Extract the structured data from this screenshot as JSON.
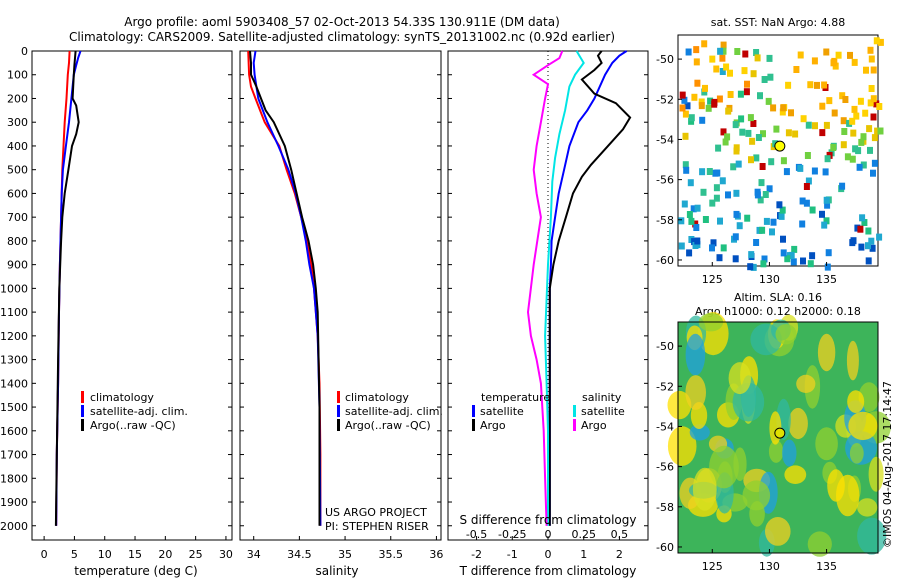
{
  "header": {
    "line1": "Argo profile: aoml 5903408_57 02-Oct-2013 54.33S 130.911E (DM data)",
    "line2": "Climatology: CARS2009. Satellite-adjusted climatology: synTS_20131002.nc (0.92d earlier)"
  },
  "credits": {
    "project": "US ARGO PROJECT",
    "pi": "PI: STEPHEN RISER",
    "imos": "©IMOS 04-Aug-2017 17:14:47"
  },
  "legend_profiles": [
    "climatology",
    "satellite-adj. clim.",
    "Argo(..raw -QC)"
  ],
  "legend_diff": {
    "temperature_head": "temperature",
    "salinity_head": "salinity",
    "t_items": [
      "satellite",
      "Argo"
    ],
    "s_items": [
      "satellite",
      "Argo"
    ]
  },
  "colors": {
    "climatology": "#ff0000",
    "satellite": "#0000ff",
    "argo": "#000000",
    "s_satellite": "#00e5e5",
    "s_argo": "#ff00ff"
  },
  "map_sst": {
    "title": "sat. SST: NaN Argo: 4.88",
    "xticks": [
      "125",
      "130",
      "135"
    ],
    "yticks": [
      "-50",
      "-52",
      "-54",
      "-56",
      "-58",
      "-60"
    ]
  },
  "map_sla": {
    "title1": "Altim. SLA: 0.16",
    "title2": "Argo h1000: 0.12 h2000: 0.18",
    "xticks": [
      "125",
      "130",
      "135"
    ],
    "yticks": [
      "-50",
      "-52",
      "-54",
      "-56",
      "-58",
      "-60"
    ]
  },
  "chart_data": [
    {
      "type": "line",
      "xlabel": "temperature (deg C)",
      "ylabel": "",
      "xlim": [
        -2,
        31
      ],
      "ylim": [
        2060,
        0
      ],
      "xticks": [
        "0",
        "5",
        "10",
        "15",
        "20",
        "25",
        "30"
      ],
      "yticks": [
        "0",
        "100",
        "200",
        "300",
        "400",
        "500",
        "600",
        "700",
        "800",
        "900",
        "1000",
        "1100",
        "1200",
        "1300",
        "1400",
        "1500",
        "1600",
        "1700",
        "1800",
        "1900",
        "2000"
      ],
      "series": [
        {
          "name": "climatology",
          "x": [
            4.2,
            4.1,
            3.9,
            3.7,
            3.4,
            3.2,
            3.0,
            2.9,
            2.8,
            2.6,
            2.45,
            2.3,
            2.1,
            2.0
          ],
          "y": [
            0,
            50,
            100,
            200,
            300,
            400,
            500,
            600,
            700,
            900,
            1100,
            1400,
            1700,
            2000
          ]
        },
        {
          "name": "satellite-adj. clim.",
          "x": [
            6.0,
            5.6,
            5.3,
            4.9,
            4.5,
            4.1,
            3.6,
            3.1,
            2.9,
            2.8,
            2.6,
            2.45,
            2.3,
            2.1,
            2.0
          ],
          "y": [
            0,
            30,
            60,
            100,
            200,
            300,
            400,
            500,
            600,
            700,
            900,
            1100,
            1400,
            1700,
            2000
          ]
        },
        {
          "name": "Argo(..raw -QC)",
          "x": [
            5.2,
            5.1,
            5.0,
            4.9,
            4.7,
            5.3,
            5.7,
            5.3,
            4.6,
            4.0,
            3.4,
            3.0,
            2.8,
            2.5,
            2.3,
            2.1,
            1.95
          ],
          "y": [
            0,
            30,
            60,
            100,
            200,
            230,
            300,
            350,
            400,
            500,
            600,
            700,
            800,
            1000,
            1300,
            1700,
            2000
          ]
        }
      ]
    },
    {
      "type": "line",
      "xlabel": "salinity",
      "ylabel": "",
      "xlim": [
        33.85,
        36.05
      ],
      "ylim": [
        2060,
        0
      ],
      "xticks": [
        "34",
        "34.5",
        "35",
        "35.5",
        "36"
      ],
      "series": [
        {
          "name": "climatology",
          "x": [
            33.94,
            33.95,
            33.97,
            34.02,
            34.12,
            34.28,
            34.36,
            34.45,
            34.52,
            34.58,
            34.63,
            34.66,
            34.7,
            34.72,
            34.73,
            34.73
          ],
          "y": [
            0,
            100,
            150,
            200,
            300,
            400,
            500,
            600,
            700,
            800,
            900,
            1000,
            1200,
            1400,
            1700,
            2000
          ]
        },
        {
          "name": "satellite-adj. clim.",
          "x": [
            34.02,
            34.0,
            34.01,
            34.03,
            34.05,
            34.15,
            34.27,
            34.38,
            34.46,
            34.52,
            34.57,
            34.61,
            34.66,
            34.7,
            34.72,
            34.73
          ],
          "y": [
            0,
            50,
            100,
            150,
            200,
            300,
            400,
            500,
            600,
            700,
            800,
            900,
            1000,
            1200,
            1500,
            2000
          ]
        },
        {
          "name": "Argo(..raw -QC)",
          "x": [
            33.96,
            33.97,
            33.97,
            34.03,
            34.08,
            34.13,
            34.22,
            34.34,
            34.41,
            34.47,
            34.53,
            34.6,
            34.65,
            34.68,
            34.7,
            34.71,
            34.72,
            34.72,
            34.72
          ],
          "y": [
            0,
            50,
            100,
            150,
            200,
            250,
            300,
            400,
            500,
            600,
            700,
            800,
            900,
            1000,
            1100,
            1300,
            1500,
            1800,
            2000
          ]
        }
      ]
    },
    {
      "type": "line",
      "xlabel": "T difference from climatology",
      "xlabel2": "S difference from climatology",
      "ylabel": "",
      "xlim": [
        -2.8,
        2.8
      ],
      "s_xlim": [
        -0.7,
        0.7
      ],
      "ylim": [
        2060,
        0
      ],
      "xticks": [
        "-2",
        "-1",
        "0",
        "1",
        "2"
      ],
      "s_xticks": [
        "-0.5",
        "-0.25",
        "0",
        "0.25",
        "0.5"
      ],
      "series": [
        {
          "name": "T satellite",
          "axis": "T",
          "x": [
            2.2,
            2.0,
            1.8,
            1.6,
            1.3,
            1.1,
            0.85,
            0.6,
            0.45,
            0.3,
            0.2,
            0.1,
            0.08,
            0.05,
            0.05,
            0.05
          ],
          "y": [
            0,
            20,
            50,
            100,
            200,
            250,
            300,
            400,
            500,
            600,
            700,
            800,
            900,
            1000,
            1500,
            2000
          ]
        },
        {
          "name": "T Argo",
          "axis": "T",
          "x": [
            1.5,
            1.4,
            1.5,
            1.3,
            0.95,
            1.3,
            1.9,
            2.3,
            2.1,
            1.8,
            1.5,
            1.2,
            0.95,
            0.7,
            0.5,
            0.3,
            0.15,
            0.05,
            0.05,
            0.05
          ],
          "y": [
            0,
            20,
            50,
            80,
            120,
            180,
            220,
            280,
            330,
            380,
            430,
            480,
            530,
            600,
            700,
            800,
            900,
            1000,
            1500,
            2000
          ]
        },
        {
          "name": "S satellite",
          "axis": "S",
          "x": [
            0.2,
            0.22,
            0.25,
            0.19,
            0.15,
            0.12,
            0.08,
            0.05,
            0.03,
            0.02,
            0.0,
            -0.02,
            -0.01,
            0.0,
            0.0,
            0.0
          ],
          "y": [
            0,
            20,
            50,
            100,
            150,
            250,
            350,
            450,
            550,
            700,
            900,
            1200,
            1400,
            1600,
            1800,
            2000
          ]
        },
        {
          "name": "S Argo",
          "axis": "S",
          "x": [
            0.1,
            0.08,
            0.0,
            -0.1,
            0.0,
            -0.02,
            -0.05,
            -0.08,
            -0.1,
            -0.08,
            -0.05,
            -0.1,
            -0.14,
            -0.12,
            -0.08,
            -0.05,
            -0.03,
            -0.02,
            -0.01
          ],
          "y": [
            0,
            30,
            60,
            100,
            140,
            200,
            300,
            400,
            500,
            600,
            700,
            900,
            1100,
            1200,
            1300,
            1400,
            1600,
            1800,
            2000
          ]
        }
      ]
    }
  ]
}
